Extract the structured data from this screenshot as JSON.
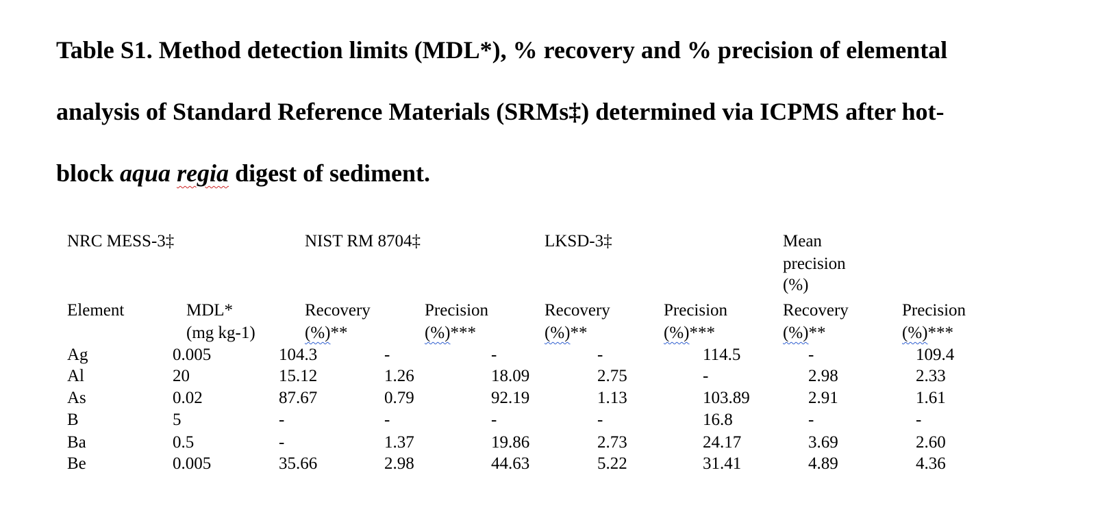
{
  "title": {
    "line1": "Table S1. Method detection limits (MDL*), % recovery and % precision of elemental",
    "line2": "analysis of Standard Reference Materials (SRMs‡) determined via ICPMS after hot-",
    "line3_start": "block ",
    "line3_italic_a": "aqua",
    "line3_italic_space": " ",
    "line3_italic_b": "regia",
    "line3_end": " digest of sediment."
  },
  "group_headers": {
    "g1": "NRC MESS-3‡",
    "g2": "NIST RM 8704‡",
    "g3": "LKSD-3‡",
    "g4_line1": "Mean",
    "g4_line2": "precision",
    "g4_line3": "(%)"
  },
  "column_headers": {
    "element": "Element",
    "mdl_line1": "MDL*",
    "mdl_line2": "(mg kg-1)",
    "rec": "Recovery",
    "prec": "Precision",
    "pct_rec_a": "(%)",
    "pct_rec_b": "**",
    "pct_prec_a": "(%)",
    "pct_prec_b": "***"
  },
  "rows": [
    {
      "element": "Ag",
      "mdl": "0.005",
      "v": [
        "104.3",
        "-",
        "-",
        "-",
        "114.5",
        "-",
        "109.4"
      ]
    },
    {
      "element": "Al",
      "mdl": "20",
      "v": [
        "15.12",
        "1.26",
        "18.09",
        "2.75",
        "-",
        "2.98",
        "2.33"
      ]
    },
    {
      "element": "As",
      "mdl": "0.02",
      "v": [
        "87.67",
        "0.79",
        "92.19",
        "1.13",
        "103.89",
        "2.91",
        "1.61"
      ]
    },
    {
      "element": "B",
      "mdl": "5",
      "v": [
        "-",
        "-",
        "-",
        "-",
        "16.8",
        "-",
        "-"
      ]
    },
    {
      "element": "Ba",
      "mdl": "0.5",
      "v": [
        "-",
        "1.37",
        "19.86",
        "2.73",
        "24.17",
        "3.69",
        "2.60"
      ]
    },
    {
      "element": "Be",
      "mdl": "0.005",
      "v": [
        "35.66",
        "2.98",
        "44.63",
        "5.22",
        "31.41",
        "4.89",
        "4.36"
      ]
    }
  ]
}
